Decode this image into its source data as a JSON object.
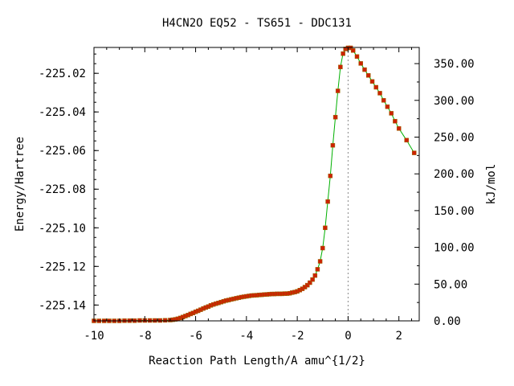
{
  "chart_data": {
    "type": "line",
    "title": "H4CN2O   EQ52 - TS651 - DDC131",
    "xlabel": "Reaction Path Length/A amu^{1/2}",
    "ylabel": "Energy/Hartree",
    "y2label": "kJ/mol",
    "xlim": [
      -10.0,
      2.8
    ],
    "ylim": [
      -225.1482,
      -225.0066
    ],
    "y2lim": [
      0,
      372
    ],
    "x_ticks": [
      "-10",
      "-8",
      "-6",
      "-4",
      "-2",
      "0",
      "2"
    ],
    "y_ticks": [
      "-225.02",
      "-225.04",
      "-225.06",
      "-225.08",
      "-225.10",
      "-225.12",
      "-225.14"
    ],
    "y2_ticks": [
      "0.00",
      "50.00",
      "100.00",
      "150.00",
      "200.00",
      "250.00",
      "300.00",
      "350.00"
    ],
    "ts_marker_x": 0,
    "grid": false,
    "line_color": "#00b000",
    "marker_color": "#cc2200",
    "marker_border": "#996600",
    "ts_line_color": "#888888",
    "series": [
      {
        "x": [
          -10.0,
          -9.8,
          -9.6,
          -9.4,
          -9.2,
          -9.0,
          -8.8,
          -8.6,
          -8.4,
          -8.2,
          -8.0,
          -7.8,
          -7.6,
          -7.4,
          -7.2,
          -7.0,
          -6.9,
          -6.8,
          -6.7,
          -6.6,
          -6.5,
          -6.4,
          -6.3,
          -6.2,
          -6.1,
          -6.0,
          -5.9,
          -5.8,
          -5.7,
          -5.6,
          -5.5,
          -5.4,
          -5.3,
          -5.2,
          -5.1,
          -5.0,
          -4.9,
          -4.8,
          -4.7,
          -4.6,
          -4.5,
          -4.4,
          -4.3,
          -4.2,
          -4.1,
          -4.0,
          -3.9,
          -3.8,
          -3.7,
          -3.6,
          -3.5,
          -3.4,
          -3.3,
          -3.2,
          -3.1,
          -3.0,
          -2.9,
          -2.8,
          -2.7,
          -2.6,
          -2.5,
          -2.4,
          -2.3,
          -2.2,
          -2.1,
          -2.0,
          -1.9,
          -1.8,
          -1.7,
          -1.6,
          -1.5,
          -1.4,
          -1.3,
          -1.2,
          -1.1,
          -1.0,
          -0.9,
          -0.8,
          -0.7,
          -0.6,
          -0.5,
          -0.4,
          -0.3,
          -0.2,
          -0.1,
          0.0,
          0.1,
          0.2,
          0.35,
          0.5,
          0.65,
          0.8,
          0.95,
          1.1,
          1.25,
          1.4,
          1.55,
          1.7,
          1.85,
          2.0,
          2.3,
          2.6
        ],
        "y": [
          -225.1482,
          -225.1482,
          -225.1482,
          -225.1482,
          -225.1482,
          -225.1482,
          -225.1481,
          -225.1481,
          -225.1481,
          -225.148,
          -225.148,
          -225.148,
          -225.148,
          -225.148,
          -225.1479,
          -225.1478,
          -225.1476,
          -225.1474,
          -225.1471,
          -225.1467,
          -225.1462,
          -225.1457,
          -225.1452,
          -225.1446,
          -225.1441,
          -225.1435,
          -225.143,
          -225.1424,
          -225.1418,
          -225.1413,
          -225.1408,
          -225.1402,
          -225.1397,
          -225.1393,
          -225.1389,
          -225.1385,
          -225.1381,
          -225.1377,
          -225.1374,
          -225.1371,
          -225.1368,
          -225.1365,
          -225.1362,
          -225.1359,
          -225.1357,
          -225.1355,
          -225.1353,
          -225.1351,
          -225.135,
          -225.1349,
          -225.1348,
          -225.1347,
          -225.1346,
          -225.1345,
          -225.1344,
          -225.1343,
          -225.1343,
          -225.1342,
          -225.1342,
          -225.1342,
          -225.1341,
          -225.1341,
          -225.1339,
          -225.1336,
          -225.1333,
          -225.1329,
          -225.1323,
          -225.1316,
          -225.1307,
          -225.1297,
          -225.1284,
          -225.1268,
          -225.1247,
          -225.1215,
          -225.1174,
          -225.1105,
          -225.1,
          -225.0864,
          -225.0731,
          -225.0573,
          -225.0427,
          -225.0291,
          -225.0167,
          -225.0098,
          -225.0074,
          -225.0068,
          -225.0068,
          -225.0082,
          -225.0113,
          -225.0149,
          -225.0181,
          -225.0211,
          -225.0242,
          -225.0272,
          -225.0303,
          -225.034,
          -225.0373,
          -225.0407,
          -225.0448,
          -225.0486,
          -225.0546,
          -225.0612
        ]
      }
    ]
  }
}
